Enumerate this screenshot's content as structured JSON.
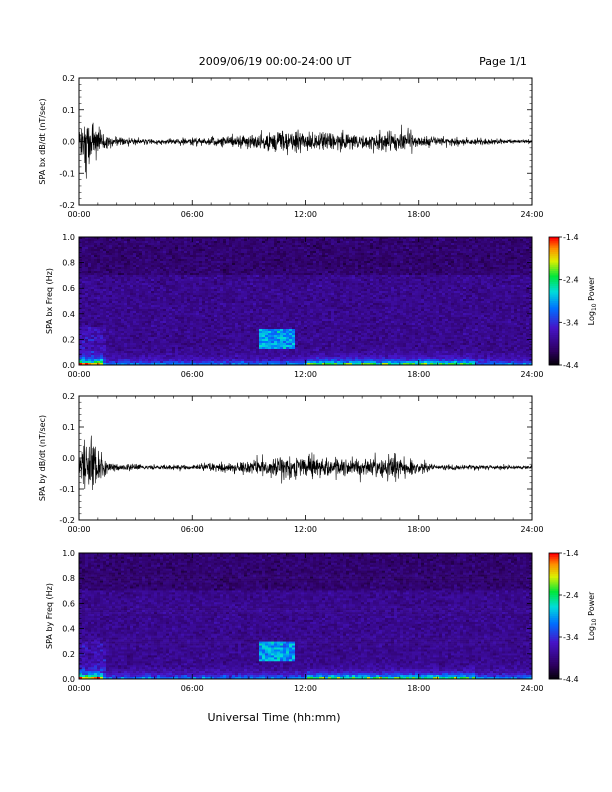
{
  "header": {
    "title": "2009/06/19   00:00-24:00 UT",
    "page": "Page 1/1"
  },
  "xaxis_title": "Universal Time (hh:mm)",
  "chart_data": [
    {
      "type": "line",
      "ylabel": "SPA bx dB/dt (nT/sec)",
      "xlim": [
        0,
        24
      ],
      "ylim": [
        -0.2,
        0.2
      ],
      "xticks": [
        "00:00",
        "06:00",
        "12:00",
        "18:00",
        "24:00"
      ],
      "yticks": [
        "0.2",
        "0.1",
        "0.0",
        "-0.1",
        "-0.2"
      ],
      "baseline": 0.0,
      "envelope": {
        "hours": [
          0,
          0.3,
          0.6,
          1.0,
          1.5,
          2,
          3,
          4,
          5,
          6,
          7,
          8,
          9,
          10,
          11,
          12,
          13,
          14,
          15,
          16,
          17,
          18,
          19,
          20,
          21,
          22,
          23,
          24
        ],
        "amplitude": [
          0.06,
          0.2,
          0.12,
          0.07,
          0.03,
          0.025,
          0.015,
          0.012,
          0.015,
          0.02,
          0.02,
          0.03,
          0.035,
          0.05,
          0.06,
          0.05,
          0.04,
          0.05,
          0.04,
          0.055,
          0.055,
          0.035,
          0.02,
          0.02,
          0.02,
          0.015,
          0.01,
          0.01
        ]
      }
    },
    {
      "type": "heatmap",
      "ylabel": "SPA bx Freq (Hz)",
      "xlim": [
        0,
        24
      ],
      "ylim": [
        0.0,
        1.0
      ],
      "xticks": [
        "00:00",
        "06:00",
        "12:00",
        "18:00",
        "24:00"
      ],
      "yticks": [
        "1.0",
        "0.8",
        "0.6",
        "0.4",
        "0.2",
        "0.0"
      ],
      "colorbar": {
        "label": "Log10 Power",
        "label_main": "Log",
        "label_sub": "10",
        "label_tail": " Power",
        "range": [
          -4.4,
          -1.4
        ],
        "ticks": [
          "-1.4",
          "-2.4",
          "-3.4",
          "-4.4"
        ]
      },
      "features": {
        "low_freq_band_hz": 0.05,
        "burst_hours": [
          9.5,
          11.5
        ],
        "burst_freq_hz": [
          0.12,
          0.28
        ]
      }
    },
    {
      "type": "line",
      "ylabel": "SPA by dB/dt (nT/sec)",
      "xlim": [
        0,
        24
      ],
      "ylim": [
        -0.2,
        0.2
      ],
      "xticks": [
        "00:00",
        "06:00",
        "12:00",
        "18:00",
        "24:00"
      ],
      "yticks": [
        "0.2",
        "0.1",
        "0.0",
        "-0.1",
        "-0.2"
      ],
      "baseline": -0.03,
      "envelope": {
        "hours": [
          0,
          0.3,
          0.6,
          1.0,
          1.5,
          2,
          3,
          4,
          5,
          6,
          7,
          8,
          9,
          10,
          11,
          12,
          13,
          14,
          15,
          16,
          17,
          18,
          19,
          20,
          21,
          22,
          23,
          24
        ],
        "amplitude": [
          0.05,
          0.15,
          0.2,
          0.08,
          0.03,
          0.02,
          0.015,
          0.012,
          0.012,
          0.015,
          0.02,
          0.03,
          0.04,
          0.05,
          0.06,
          0.07,
          0.05,
          0.05,
          0.05,
          0.06,
          0.06,
          0.03,
          0.015,
          0.012,
          0.012,
          0.01,
          0.01,
          0.01
        ]
      }
    },
    {
      "type": "heatmap",
      "ylabel": "SPA by Freq (Hz)",
      "xlim": [
        0,
        24
      ],
      "ylim": [
        0.0,
        1.0
      ],
      "xticks": [
        "00:00",
        "06:00",
        "12:00",
        "18:00",
        "24:00"
      ],
      "yticks": [
        "1.0",
        "0.8",
        "0.6",
        "0.4",
        "0.2",
        "0.0"
      ],
      "colorbar": {
        "label": "Log10 Power",
        "label_main": "Log",
        "label_sub": "10",
        "label_tail": " Power",
        "range": [
          -4.4,
          -1.4
        ],
        "ticks": [
          "-1.4",
          "-2.4",
          "-3.4",
          "-4.4"
        ]
      },
      "features": {
        "low_freq_band_hz": 0.05,
        "burst_hours": [
          9.5,
          11.5
        ],
        "burst_freq_hz": [
          0.14,
          0.3
        ]
      }
    }
  ]
}
